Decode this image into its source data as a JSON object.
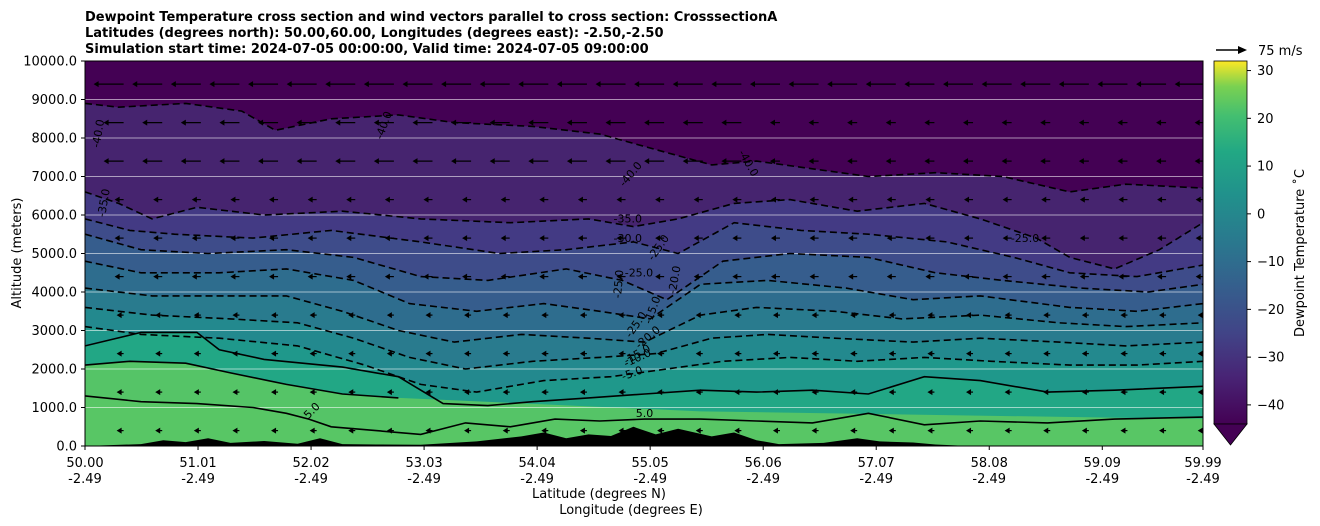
{
  "chart_data": {
    "type": "heatmap",
    "title_lines": [
      "Dewpoint Temperature cross section and wind vectors parallel to cross section: CrosssectionA",
      "Latitudes (degrees north): 50.00,60.00, Longitudes (degrees east): -2.50,-2.50",
      "Simulation start time: 2024-07-05 00:00:00, Valid time: 2024-07-05 09:00:00"
    ],
    "xlabel_lat": "Latitude (degrees N)",
    "xlabel_lon": "Longitude (degrees E)",
    "ylabel": "Altitude (meters)",
    "x_tick_lat": [
      "50.00",
      "51.01",
      "52.02",
      "53.03",
      "54.04",
      "55.05",
      "56.06",
      "57.07",
      "58.08",
      "59.09",
      "59.99"
    ],
    "x_tick_lon": [
      "-2.49",
      "-2.49",
      "-2.49",
      "-2.49",
      "-2.49",
      "-2.49",
      "-2.49",
      "-2.49",
      "-2.49",
      "-2.49",
      "-2.49"
    ],
    "x_tick_values": [
      50.0,
      51.01,
      52.02,
      53.03,
      54.04,
      55.05,
      56.06,
      57.07,
      58.08,
      59.09,
      59.99
    ],
    "xlim": [
      50.0,
      59.99
    ],
    "y_ticks": [
      "0.0",
      "1000.0",
      "2000.0",
      "3000.0",
      "4000.0",
      "5000.0",
      "6000.0",
      "7000.0",
      "8000.0",
      "9000.0",
      "10000.0"
    ],
    "ylim": [
      0,
      10000
    ],
    "grid": "horizontal",
    "colorbar": {
      "label": "Dewpoint Temperature ˚C",
      "ticks": [
        "30",
        "20",
        "10",
        "0",
        "−10",
        "−20",
        "−30",
        "−40"
      ],
      "tick_values": [
        30,
        20,
        10,
        0,
        -10,
        -20,
        -30,
        -40
      ],
      "range": [
        -44,
        32
      ],
      "extend": "min",
      "colormap": "viridis"
    },
    "quiver_key": {
      "label": "75 m/s",
      "value": 75
    },
    "contour_labels": [
      {
        "text": "-40.0",
        "lat": 50.15,
        "alt": 8100,
        "rot": -80
      },
      {
        "text": "-35.0",
        "lat": 50.2,
        "alt": 6300,
        "rot": -80
      },
      {
        "text": "-40.0",
        "lat": 52.7,
        "alt": 8300,
        "rot": -70
      },
      {
        "text": "-40.0",
        "lat": 54.9,
        "alt": 7000,
        "rot": -50
      },
      {
        "text": "-40.0",
        "lat": 55.9,
        "alt": 7300,
        "rot": 60
      },
      {
        "text": "-35.0",
        "lat": 54.85,
        "alt": 5800,
        "rot": 0
      },
      {
        "text": "-30.0",
        "lat": 54.85,
        "alt": 5300,
        "rot": 0
      },
      {
        "text": "-25.0",
        "lat": 55.15,
        "alt": 5100,
        "rot": -55
      },
      {
        "text": "-25.0",
        "lat": 54.95,
        "alt": 4400,
        "rot": 0
      },
      {
        "text": "-20.0",
        "lat": 55.3,
        "alt": 4300,
        "rot": -80
      },
      {
        "text": "-25.0",
        "lat": 54.8,
        "alt": 4200,
        "rot": -85
      },
      {
        "text": "-15.0",
        "lat": 55.1,
        "alt": 3500,
        "rot": -70
      },
      {
        "text": "-25.0",
        "lat": 54.95,
        "alt": 3100,
        "rot": -55
      },
      {
        "text": "-20.0",
        "lat": 55.05,
        "alt": 2750,
        "rot": -40
      },
      {
        "text": "-15.0",
        "lat": 54.95,
        "alt": 2300,
        "rot": -30
      },
      {
        "text": "-10.0",
        "lat": 54.95,
        "alt": 2200,
        "rot": -25
      },
      {
        "text": "-5.0",
        "lat": 54.9,
        "alt": 1800,
        "rot": -20
      },
      {
        "text": "5.0",
        "lat": 55.0,
        "alt": 750,
        "rot": 0
      },
      {
        "text": "5.0",
        "lat": 52.05,
        "alt": 850,
        "rot": -45
      },
      {
        "text": "-25.0",
        "lat": 58.4,
        "alt": 5300,
        "rot": 0
      }
    ],
    "contours": [
      {
        "level": -40,
        "points": [
          [
            50.0,
            8900
          ],
          [
            50.3,
            8800
          ],
          [
            50.9,
            8900
          ],
          [
            51.4,
            8700
          ],
          [
            51.7,
            8200
          ],
          [
            52.2,
            8500
          ],
          [
            52.8,
            8600
          ],
          [
            53.3,
            8400
          ],
          [
            54.0,
            8300
          ],
          [
            54.6,
            8100
          ],
          [
            55.1,
            7700
          ],
          [
            55.6,
            7300
          ],
          [
            56.0,
            7400
          ],
          [
            56.5,
            7200
          ],
          [
            57.0,
            7000
          ],
          [
            57.6,
            7100
          ],
          [
            58.2,
            7000
          ],
          [
            58.8,
            6600
          ],
          [
            59.3,
            6800
          ],
          [
            59.99,
            6700
          ]
        ]
      },
      {
        "level": -35,
        "points": [
          [
            50.0,
            6600
          ],
          [
            50.3,
            6300
          ],
          [
            50.6,
            5900
          ],
          [
            51.0,
            6200
          ],
          [
            51.6,
            6000
          ],
          [
            52.3,
            6100
          ],
          [
            53.0,
            5900
          ],
          [
            53.8,
            5800
          ],
          [
            54.5,
            5900
          ],
          [
            54.9,
            5700
          ],
          [
            55.3,
            5900
          ],
          [
            55.8,
            6300
          ],
          [
            56.3,
            6400
          ],
          [
            56.9,
            6100
          ],
          [
            57.5,
            6300
          ],
          [
            58.0,
            5900
          ],
          [
            58.5,
            5400
          ],
          [
            58.8,
            4900
          ],
          [
            59.2,
            4600
          ],
          [
            59.6,
            5100
          ],
          [
            59.99,
            5800
          ]
        ]
      },
      {
        "level": -30,
        "points": [
          [
            50.0,
            5900
          ],
          [
            50.4,
            5600
          ],
          [
            50.8,
            5500
          ],
          [
            51.5,
            5400
          ],
          [
            52.2,
            5600
          ],
          [
            53.0,
            5300
          ],
          [
            53.7,
            5000
          ],
          [
            54.3,
            5100
          ],
          [
            54.9,
            5300
          ],
          [
            55.3,
            5000
          ],
          [
            55.8,
            5800
          ],
          [
            56.4,
            5600
          ],
          [
            57.0,
            5500
          ],
          [
            57.7,
            5300
          ],
          [
            58.3,
            4900
          ],
          [
            58.8,
            4500
          ],
          [
            59.4,
            4400
          ],
          [
            59.99,
            4700
          ]
        ]
      },
      {
        "level": -25,
        "points": [
          [
            50.0,
            5500
          ],
          [
            50.5,
            5100
          ],
          [
            51.1,
            5000
          ],
          [
            51.8,
            5100
          ],
          [
            52.4,
            4900
          ],
          [
            53.0,
            4400
          ],
          [
            53.6,
            4300
          ],
          [
            54.3,
            4600
          ],
          [
            54.8,
            4300
          ],
          [
            55.2,
            3800
          ],
          [
            55.7,
            4800
          ],
          [
            56.3,
            5000
          ],
          [
            57.0,
            4900
          ],
          [
            57.6,
            4500
          ],
          [
            58.2,
            4300
          ],
          [
            58.9,
            4100
          ],
          [
            59.5,
            4000
          ],
          [
            59.99,
            4200
          ]
        ]
      },
      {
        "level": -20,
        "points": [
          [
            50.0,
            4800
          ],
          [
            50.5,
            4500
          ],
          [
            51.2,
            4500
          ],
          [
            51.8,
            4600
          ],
          [
            52.4,
            4300
          ],
          [
            52.9,
            3700
          ],
          [
            53.5,
            3500
          ],
          [
            54.1,
            3700
          ],
          [
            54.6,
            3500
          ],
          [
            55.05,
            3300
          ],
          [
            55.5,
            4200
          ],
          [
            56.1,
            4300
          ],
          [
            56.8,
            4100
          ],
          [
            57.4,
            3800
          ],
          [
            58.0,
            3900
          ],
          [
            58.8,
            3600
          ],
          [
            59.4,
            3500
          ],
          [
            59.99,
            3700
          ]
        ]
      },
      {
        "level": -15,
        "points": [
          [
            50.0,
            4100
          ],
          [
            50.6,
            3900
          ],
          [
            51.2,
            3900
          ],
          [
            51.8,
            3900
          ],
          [
            52.3,
            3500
          ],
          [
            52.8,
            3000
          ],
          [
            53.3,
            2700
          ],
          [
            53.9,
            2900
          ],
          [
            54.5,
            2800
          ],
          [
            55.0,
            2700
          ],
          [
            55.5,
            3400
          ],
          [
            56.0,
            3600
          ],
          [
            56.7,
            3500
          ],
          [
            57.3,
            3300
          ],
          [
            58.0,
            3400
          ],
          [
            58.7,
            3200
          ],
          [
            59.3,
            3100
          ],
          [
            59.99,
            3200
          ]
        ]
      },
      {
        "level": -10,
        "points": [
          [
            50.0,
            3600
          ],
          [
            50.6,
            3400
          ],
          [
            51.3,
            3300
          ],
          [
            51.9,
            3200
          ],
          [
            52.4,
            2800
          ],
          [
            52.9,
            2300
          ],
          [
            53.4,
            2000
          ],
          [
            54.0,
            2200
          ],
          [
            54.6,
            2300
          ],
          [
            55.1,
            2400
          ],
          [
            55.6,
            2800
          ],
          [
            56.1,
            2900
          ],
          [
            56.7,
            2800
          ],
          [
            57.4,
            2700
          ],
          [
            58.0,
            2800
          ],
          [
            58.7,
            2700
          ],
          [
            59.3,
            2600
          ],
          [
            59.99,
            2700
          ]
        ]
      },
      {
        "level": -5,
        "points": [
          [
            50.0,
            3100
          ],
          [
            50.5,
            2900
          ],
          [
            51.2,
            2800
          ],
          [
            51.9,
            2600
          ],
          [
            52.5,
            2100
          ],
          [
            53.0,
            1600
          ],
          [
            53.5,
            1400
          ],
          [
            54.1,
            1700
          ],
          [
            54.7,
            1800
          ],
          [
            55.2,
            2000
          ],
          [
            55.7,
            2200
          ],
          [
            56.3,
            2300
          ],
          [
            56.9,
            2200
          ],
          [
            57.5,
            2300
          ],
          [
            58.1,
            2200
          ],
          [
            58.8,
            2100
          ],
          [
            59.4,
            2100
          ],
          [
            59.99,
            2200
          ]
        ]
      }
    ],
    "solid_contours": [
      {
        "level": 0,
        "points": [
          [
            50.0,
            2600
          ],
          [
            50.5,
            2950
          ],
          [
            51.0,
            2950
          ],
          [
            51.2,
            2500
          ],
          [
            51.6,
            2250
          ],
          [
            52.3,
            2050
          ],
          [
            52.8,
            1800
          ],
          [
            53.2,
            1100
          ],
          [
            53.6,
            1050
          ],
          [
            54.0,
            1150
          ],
          [
            54.5,
            1250
          ],
          [
            55.0,
            1350
          ],
          [
            55.5,
            1450
          ],
          [
            56.0,
            1400
          ],
          [
            56.5,
            1450
          ],
          [
            57.0,
            1350
          ],
          [
            57.5,
            1800
          ],
          [
            58.0,
            1700
          ],
          [
            58.6,
            1400
          ],
          [
            59.2,
            1450
          ],
          [
            59.99,
            1550
          ]
        ]
      },
      {
        "level": 5,
        "points": [
          [
            50.0,
            1300
          ],
          [
            50.5,
            1150
          ],
          [
            51.0,
            1100
          ],
          [
            51.5,
            1000
          ],
          [
            51.8,
            850
          ],
          [
            52.0,
            700
          ],
          [
            52.2,
            500
          ],
          [
            52.6,
            400
          ],
          [
            53.0,
            300
          ],
          [
            53.4,
            600
          ],
          [
            53.8,
            500
          ],
          [
            54.2,
            700
          ],
          [
            54.6,
            650
          ],
          [
            55.0,
            700
          ],
          [
            55.5,
            700
          ],
          [
            56.0,
            650
          ],
          [
            56.5,
            600
          ],
          [
            57.0,
            850
          ],
          [
            57.5,
            550
          ],
          [
            58.0,
            650
          ],
          [
            58.6,
            600
          ],
          [
            59.2,
            700
          ],
          [
            59.99,
            750
          ]
        ]
      },
      {
        "level": 10,
        "points": [
          [
            50.0,
            2100
          ],
          [
            50.4,
            2200
          ],
          [
            50.9,
            2150
          ],
          [
            51.3,
            1900
          ],
          [
            51.8,
            1600
          ],
          [
            52.3,
            1350
          ],
          [
            52.8,
            1250
          ]
        ]
      }
    ],
    "terrain": [
      [
        50.0,
        0
      ],
      [
        50.5,
        50
      ],
      [
        50.7,
        150
      ],
      [
        50.9,
        100
      ],
      [
        51.1,
        200
      ],
      [
        51.3,
        80
      ],
      [
        51.6,
        130
      ],
      [
        51.9,
        60
      ],
      [
        52.1,
        200
      ],
      [
        52.3,
        50
      ],
      [
        52.6,
        40
      ],
      [
        53.0,
        30
      ],
      [
        53.5,
        120
      ],
      [
        53.9,
        250
      ],
      [
        54.1,
        350
      ],
      [
        54.3,
        200
      ],
      [
        54.5,
        300
      ],
      [
        54.7,
        260
      ],
      [
        54.9,
        500
      ],
      [
        55.1,
        300
      ],
      [
        55.3,
        450
      ],
      [
        55.6,
        250
      ],
      [
        55.8,
        350
      ],
      [
        56.0,
        150
      ],
      [
        56.2,
        50
      ],
      [
        56.6,
        80
      ],
      [
        56.9,
        200
      ],
      [
        57.1,
        120
      ],
      [
        57.4,
        90
      ],
      [
        57.6,
        40
      ],
      [
        57.9,
        0
      ],
      [
        59.99,
        0
      ]
    ]
  }
}
